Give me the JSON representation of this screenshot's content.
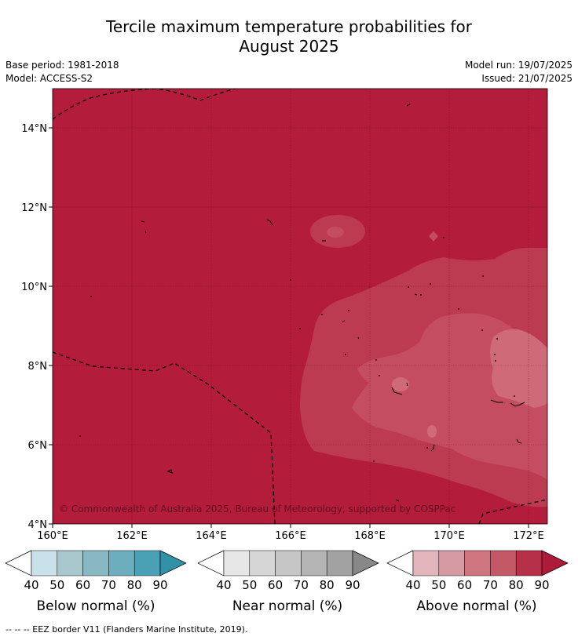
{
  "title_line1": "Tercile maximum temperature probabilities for",
  "title_line2": "August 2025",
  "meta": {
    "base_period": "Base period: 1981-2018",
    "model": "Model: ACCESS-S2",
    "model_run": "Model run: 19/07/2025",
    "issued": "Issued: 21/07/2025"
  },
  "map": {
    "lat_ticks": [
      "14°N",
      "12°N",
      "10°N",
      "8°N",
      "6°N",
      "4°N"
    ],
    "lon_ticks": [
      "160°E",
      "162°E",
      "164°E",
      "166°E",
      "168°E",
      "170°E",
      "172°E"
    ],
    "copyright": "© Commonwealth of Australia 2025, Bureau of Meteorology, supported by COSPPac"
  },
  "colorbars": [
    {
      "label": "Below normal (%)",
      "ticks": [
        "40",
        "50",
        "60",
        "70",
        "80",
        "90"
      ],
      "colors": [
        "#c9e1e8",
        "#a7c7cd",
        "#88b8c4",
        "#6caebd",
        "#4aa1b5",
        "#3191a7"
      ]
    },
    {
      "label": "Near normal (%)",
      "ticks": [
        "40",
        "50",
        "60",
        "70",
        "80",
        "90"
      ],
      "colors": [
        "#e6e6e6",
        "#d6d6d6",
        "#c6c6c6",
        "#b4b4b4",
        "#a2a2a2",
        "#888888"
      ]
    },
    {
      "label": "Above normal (%)",
      "ticks": [
        "40",
        "50",
        "60",
        "70",
        "80",
        "90"
      ],
      "colors": [
        "#e1b5bb",
        "#d59aa3",
        "#cf7580",
        "#c35866",
        "#b63148",
        "#ae1a3a"
      ]
    }
  ],
  "footnote": "--  --  -- EEZ border V11 (Flanders Marine Institute, 2019)."
}
